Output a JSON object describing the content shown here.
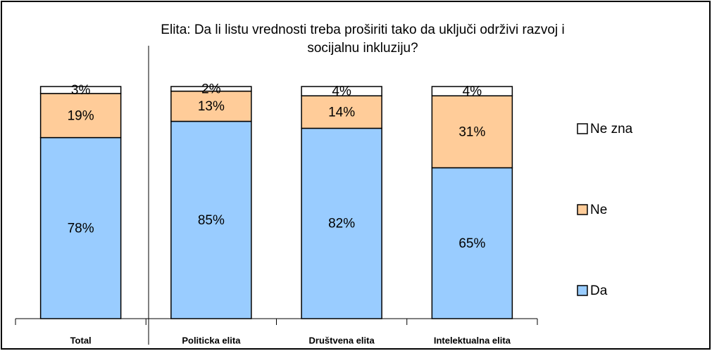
{
  "chart_data": {
    "type": "stacked_bar",
    "title": "Elita: Da li listu vrednosti treba proširiti tako da uključi održivi razvoj i socijalnu inkluziju?",
    "categories": [
      "Total",
      "Politicka elita",
      "Društvena elita",
      "Intelektualna elita"
    ],
    "ylim": [
      0,
      100
    ],
    "series": [
      {
        "name": "Da",
        "color": "#99ccff",
        "values": [
          78,
          85,
          82,
          65
        ],
        "value_labels": [
          "78%",
          "85%",
          "82%",
          "65%"
        ]
      },
      {
        "name": "Ne",
        "color": "#ffcc99",
        "values": [
          19,
          13,
          14,
          31
        ],
        "value_labels": [
          "19%",
          "13%",
          "14%",
          "31%"
        ]
      },
      {
        "name": "Ne zna",
        "color": "#ffffff",
        "values": [
          3,
          2,
          4,
          4
        ],
        "value_labels": [
          "3%",
          "2%",
          "4%",
          "4%"
        ]
      }
    ]
  }
}
